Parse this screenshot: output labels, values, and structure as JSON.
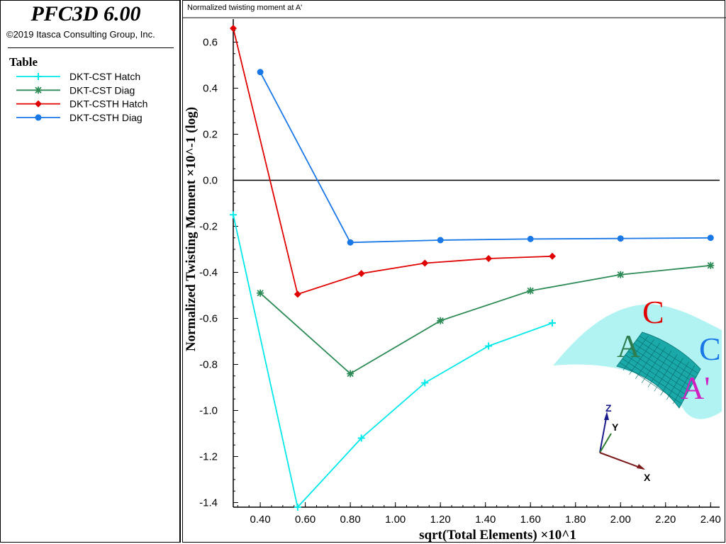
{
  "app": {
    "title": "PFC3D 6.00",
    "copyright": "©2019 Itasca Consulting Group, Inc."
  },
  "legend": {
    "title": "Table"
  },
  "chart_data": {
    "type": "line",
    "title": "Normalized twisting moment at A'",
    "xlabel": "sqrt(Total Elements) ×10^1",
    "ylabel": "Normalized Twisting Moment ×10^-1 (log)",
    "xlim": [
      0.28,
      2.44
    ],
    "ylim": [
      -1.42,
      0.7
    ],
    "xticks": [
      "0.40",
      "0.60",
      "0.80",
      "1.00",
      "1.20",
      "1.40",
      "1.60",
      "1.80",
      "2.00",
      "2.20",
      "2.40"
    ],
    "yticks": [
      "0.6",
      "0.4",
      "0.2",
      "0.0",
      "-0.2",
      "-0.4",
      "-0.6",
      "-0.8",
      "-1.0",
      "-1.2",
      "-1.4"
    ],
    "zero_line": true,
    "series": [
      {
        "name": "DKT-CST Hatch",
        "color": "#00e8e8",
        "marker": "plus",
        "x": [
          0.28,
          0.566,
          0.849,
          1.131,
          1.414,
          1.697
        ],
        "y": [
          -0.15,
          -1.42,
          -1.12,
          -0.88,
          -0.72,
          -0.62
        ]
      },
      {
        "name": "DKT-CST Diag",
        "color": "#2e8b57",
        "marker": "star",
        "x": [
          0.4,
          0.8,
          1.2,
          1.6,
          2.0,
          2.4
        ],
        "y": [
          -0.49,
          -0.84,
          -0.61,
          -0.48,
          -0.41,
          -0.37
        ]
      },
      {
        "name": "DKT-CSTH Hatch",
        "color": "#e00000",
        "marker": "diamond",
        "x": [
          0.28,
          0.566,
          0.849,
          1.131,
          1.414,
          1.697
        ],
        "y": [
          0.66,
          -0.495,
          -0.405,
          -0.36,
          -0.34,
          -0.33
        ]
      },
      {
        "name": "DKT-CSTH Diag",
        "color": "#1a78e6",
        "marker": "circle",
        "x": [
          0.4,
          0.8,
          1.2,
          1.6,
          2.0,
          2.4
        ],
        "y": [
          0.47,
          -0.27,
          -0.26,
          -0.255,
          -0.253,
          -0.25
        ]
      }
    ]
  },
  "inset": {
    "labels": {
      "a": "A",
      "c1": "C",
      "c2": "C",
      "a_prime": "A'"
    },
    "axis_labels": {
      "z": "Z",
      "y": "Y",
      "x": "X"
    },
    "colors": {
      "shell": "#a8f2f2",
      "mesh": "#1aa8a8",
      "a": "#2e7d4f",
      "c": "#e00000",
      "c2": "#1a78e6",
      "a_prime": "#d020c0"
    }
  }
}
